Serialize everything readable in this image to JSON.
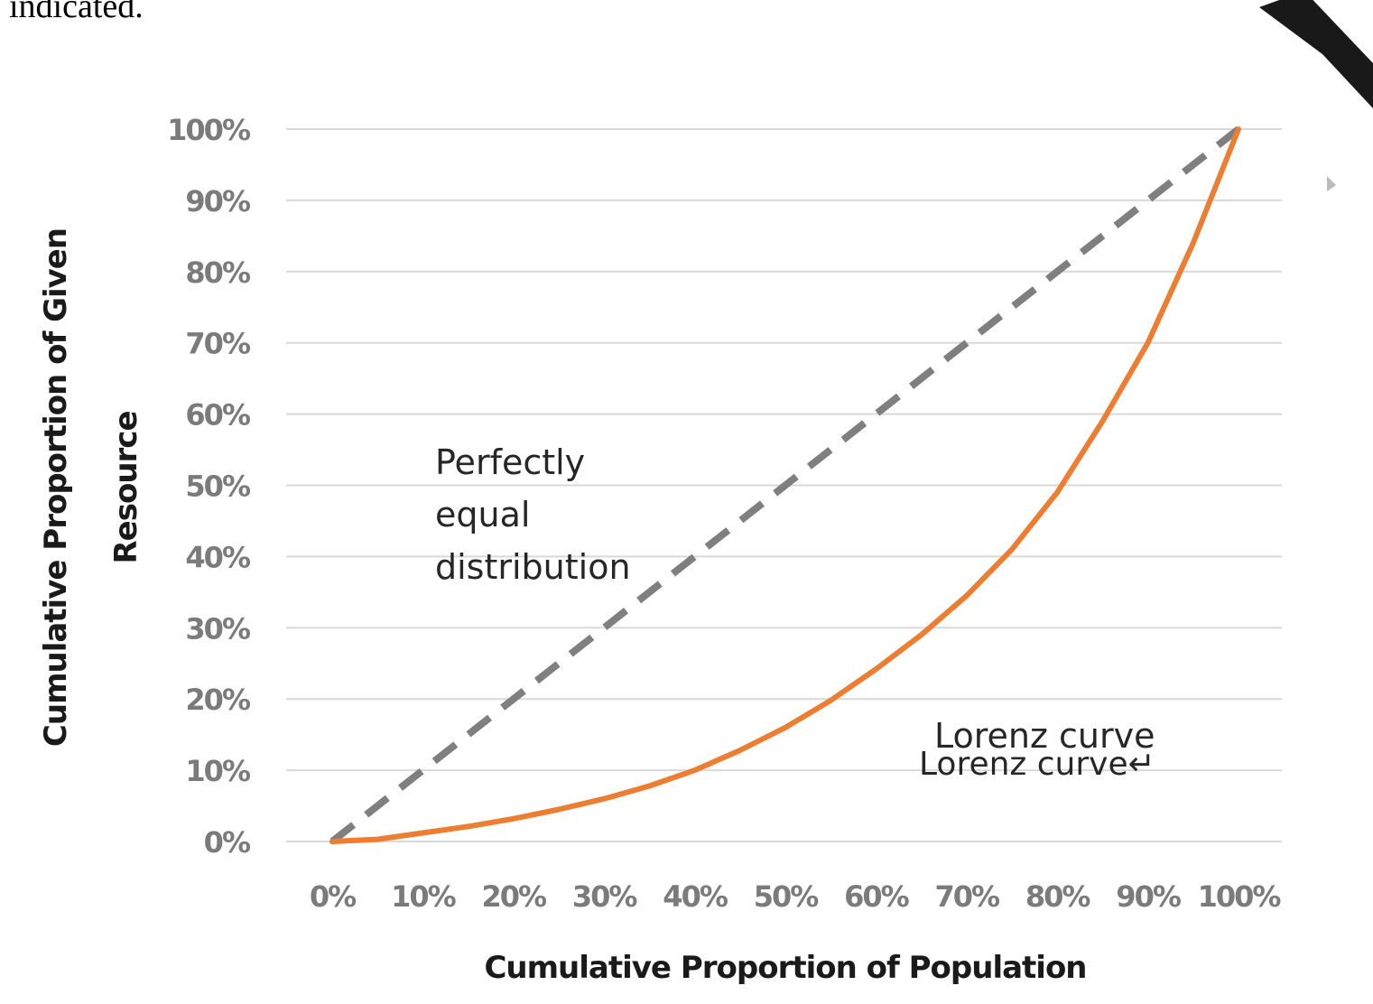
{
  "page": {
    "top_text": "indicated."
  },
  "chart_data": {
    "type": "line",
    "xlabel": "Cumulative Proportion of Population",
    "ylabel_lines": [
      "Cumulative Proportion of Given",
      "Resource"
    ],
    "xlim": [
      0,
      100
    ],
    "ylim": [
      0,
      100
    ],
    "x_ticks": [
      "0%",
      "10%",
      "20%",
      "30%",
      "40%",
      "50%",
      "60%",
      "70%",
      "80%",
      "90%",
      "100%"
    ],
    "y_ticks": [
      "0%",
      "10%",
      "20%",
      "30%",
      "40%",
      "50%",
      "60%",
      "70%",
      "80%",
      "90%",
      "100%"
    ],
    "grid": true,
    "series": [
      {
        "name": "Perfectly equal distribution",
        "style": "dashed",
        "color": "#7f7f7f",
        "x": [
          0,
          100
        ],
        "y": [
          0,
          100
        ]
      },
      {
        "name": "Lorenz curve",
        "style": "solid",
        "color": "#ed7d31",
        "x": [
          0,
          5,
          10,
          15,
          20,
          25,
          30,
          35,
          40,
          45,
          50,
          55,
          60,
          65,
          70,
          75,
          80,
          85,
          90,
          95,
          100
        ],
        "y": [
          0,
          0.3,
          1.2,
          2.1,
          3.2,
          4.5,
          6.0,
          7.8,
          10.0,
          12.8,
          16.0,
          19.8,
          24.2,
          29.0,
          34.5,
          41.0,
          49.0,
          59.0,
          70.0,
          84.0,
          100.0
        ]
      }
    ],
    "annotations": {
      "equal_lines": [
        "Perfectly",
        "equal",
        "distribution"
      ],
      "lorenz": "Lorenz curve",
      "lorenz_dup": "Lorenz curve↵"
    }
  }
}
